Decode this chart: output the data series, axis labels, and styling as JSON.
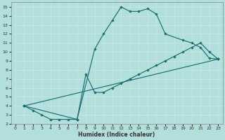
{
  "bg_color": "#b2dfdb",
  "line_color": "#1a7070",
  "grid_color": "#c8e8e5",
  "xlabel": "Humidex (Indice chaleur)",
  "xlim": [
    -0.5,
    23.5
  ],
  "ylim": [
    2,
    15.5
  ],
  "xticks": [
    0,
    1,
    2,
    3,
    4,
    5,
    6,
    7,
    8,
    9,
    10,
    11,
    12,
    13,
    14,
    15,
    16,
    17,
    18,
    19,
    20,
    21,
    22,
    23
  ],
  "yticks": [
    2,
    3,
    4,
    5,
    6,
    7,
    8,
    9,
    10,
    11,
    12,
    13,
    14,
    15
  ],
  "line1_x": [
    1,
    2,
    3,
    4,
    5,
    6,
    7,
    9,
    10,
    11,
    12,
    13,
    14,
    15,
    16,
    17,
    19,
    20,
    21,
    22,
    23
  ],
  "line1_y": [
    4.0,
    3.5,
    3.0,
    2.5,
    2.5,
    2.5,
    2.5,
    10.3,
    12.0,
    13.5,
    15.0,
    14.5,
    14.5,
    14.8,
    14.2,
    12.0,
    11.3,
    11.0,
    10.5,
    9.3,
    9.2
  ],
  "line2_x": [
    1,
    7,
    8,
    9,
    10,
    11,
    12,
    13,
    14,
    15,
    16,
    17,
    18,
    19,
    20,
    21,
    22,
    23
  ],
  "line2_y": [
    4.0,
    2.5,
    7.5,
    5.5,
    5.5,
    6.0,
    6.5,
    7.0,
    7.5,
    8.0,
    8.5,
    9.0,
    9.5,
    10.0,
    10.5,
    11.0,
    10.0,
    9.2
  ],
  "line3_x": [
    1,
    23
  ],
  "line3_y": [
    4.0,
    9.2
  ]
}
